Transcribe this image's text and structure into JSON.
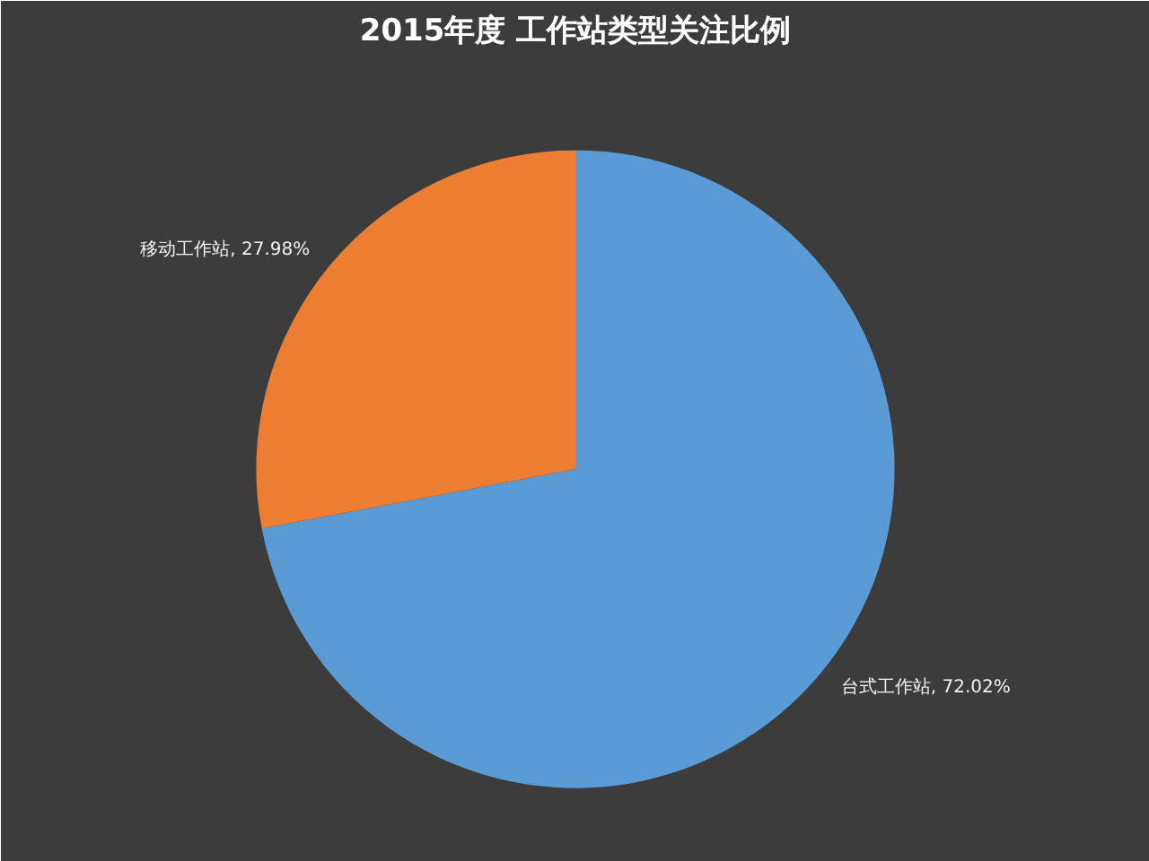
{
  "chart_data": {
    "type": "pie",
    "title": "2015年度 工作站类型关注比例",
    "categories": [
      "台式工作站",
      "移动工作站"
    ],
    "values": [
      72.02,
      27.98
    ],
    "value_labels": [
      "72.02%",
      "27.98%"
    ],
    "colors": [
      "#5b9bd5",
      "#ed7d31"
    ]
  }
}
